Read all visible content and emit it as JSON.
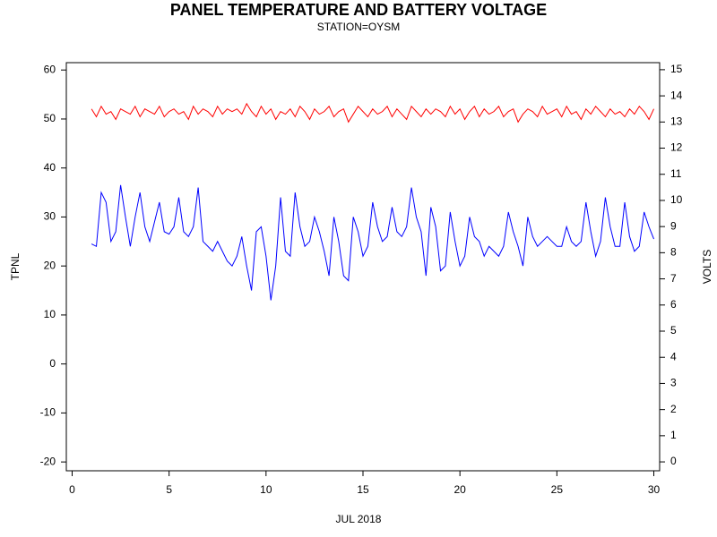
{
  "chart_data": {
    "type": "line",
    "title": "PANEL TEMPERATURE AND BATTERY VOLTAGE",
    "subtitle": "STATION=OYSM",
    "xlabel": "JUL 2018",
    "x": [
      1,
      1.25,
      1.5,
      1.75,
      2,
      2.25,
      2.5,
      2.75,
      3,
      3.25,
      3.5,
      3.75,
      4,
      4.25,
      4.5,
      4.75,
      5,
      5.25,
      5.5,
      5.75,
      6,
      6.25,
      6.5,
      6.75,
      7,
      7.25,
      7.5,
      7.75,
      8,
      8.25,
      8.5,
      8.75,
      9,
      9.25,
      9.5,
      9.75,
      10,
      10.25,
      10.5,
      10.75,
      11,
      11.25,
      11.5,
      11.75,
      12,
      12.25,
      12.5,
      12.75,
      13,
      13.25,
      13.5,
      13.75,
      14,
      14.25,
      14.5,
      14.75,
      15,
      15.25,
      15.5,
      15.75,
      16,
      16.25,
      16.5,
      16.75,
      17,
      17.25,
      17.5,
      17.75,
      18,
      18.25,
      18.5,
      18.75,
      19,
      19.25,
      19.5,
      19.75,
      20,
      20.25,
      20.5,
      20.75,
      21,
      21.25,
      21.5,
      21.75,
      22,
      22.25,
      22.5,
      22.75,
      23,
      23.25,
      23.5,
      23.75,
      24,
      24.25,
      24.5,
      24.75,
      25,
      25.25,
      25.5,
      25.75,
      26,
      26.25,
      26.5,
      26.75,
      27,
      27.25,
      27.5,
      27.75,
      28,
      28.25,
      28.5,
      28.75,
      29,
      29.25,
      29.5,
      29.75,
      30
    ],
    "series": [
      {
        "name": "TPNL",
        "color": "#0000ff",
        "axis": "y",
        "values": [
          24.5,
          24,
          35,
          33,
          25,
          27,
          36.5,
          30,
          24,
          30,
          35,
          28,
          25,
          29,
          33,
          27,
          26.5,
          28,
          34,
          27,
          26,
          28,
          36,
          25,
          24,
          23,
          25,
          23,
          21,
          20,
          22,
          26,
          20,
          15,
          27,
          28,
          22,
          13,
          20,
          34,
          23,
          22,
          35,
          28,
          24,
          25,
          30,
          27,
          23,
          18,
          30,
          25,
          18,
          17,
          30,
          27,
          22,
          24,
          33,
          28,
          25,
          26,
          32,
          27,
          26,
          28,
          36,
          30,
          27,
          18,
          32,
          28,
          19,
          20,
          31,
          25,
          20,
          22,
          30,
          26,
          25,
          22,
          24,
          23,
          22,
          24,
          31,
          27,
          24,
          20,
          30,
          26,
          24,
          25,
          26,
          25,
          24,
          24,
          28,
          25,
          24,
          25,
          33,
          27,
          22,
          25,
          34,
          28,
          24,
          24,
          33,
          26,
          23,
          24,
          31,
          28,
          25.5
        ]
      },
      {
        "name": "VOLTS",
        "color": "#ff0000",
        "axis": "y2",
        "values": [
          13.5,
          13.2,
          13.6,
          13.3,
          13.4,
          13.1,
          13.5,
          13.4,
          13.3,
          13.6,
          13.2,
          13.5,
          13.4,
          13.3,
          13.6,
          13.2,
          13.4,
          13.5,
          13.3,
          13.4,
          13.1,
          13.6,
          13.3,
          13.5,
          13.4,
          13.2,
          13.6,
          13.3,
          13.5,
          13.4,
          13.5,
          13.3,
          13.7,
          13.4,
          13.2,
          13.6,
          13.3,
          13.5,
          13.1,
          13.4,
          13.3,
          13.5,
          13.2,
          13.6,
          13.4,
          13.1,
          13.5,
          13.3,
          13.4,
          13.6,
          13.2,
          13.4,
          13.5,
          13.0,
          13.3,
          13.6,
          13.4,
          13.2,
          13.5,
          13.3,
          13.4,
          13.6,
          13.2,
          13.5,
          13.3,
          13.1,
          13.6,
          13.4,
          13.2,
          13.5,
          13.3,
          13.5,
          13.4,
          13.2,
          13.6,
          13.3,
          13.5,
          13.1,
          13.4,
          13.6,
          13.2,
          13.5,
          13.3,
          13.4,
          13.6,
          13.2,
          13.4,
          13.5,
          13.0,
          13.3,
          13.5,
          13.4,
          13.2,
          13.6,
          13.3,
          13.4,
          13.5,
          13.2,
          13.6,
          13.3,
          13.4,
          13.1,
          13.5,
          13.3,
          13.6,
          13.4,
          13.2,
          13.5,
          13.3,
          13.4,
          13.2,
          13.5,
          13.3,
          13.6,
          13.4,
          13.1,
          13.5
        ]
      }
    ],
    "xlim": [
      -0.3,
      30.3
    ],
    "xticks": [
      0,
      5,
      10,
      15,
      20,
      25,
      30
    ],
    "ylim": [
      -21.8,
      61.5
    ],
    "yticks": [
      -20,
      -10,
      0,
      10,
      20,
      30,
      40,
      50,
      60
    ],
    "y2lim": [
      -0.34,
      15.27
    ],
    "y2ticks": [
      0,
      1,
      2,
      3,
      4,
      5,
      6,
      7,
      8,
      9,
      10,
      11,
      12,
      13,
      14,
      15
    ]
  }
}
